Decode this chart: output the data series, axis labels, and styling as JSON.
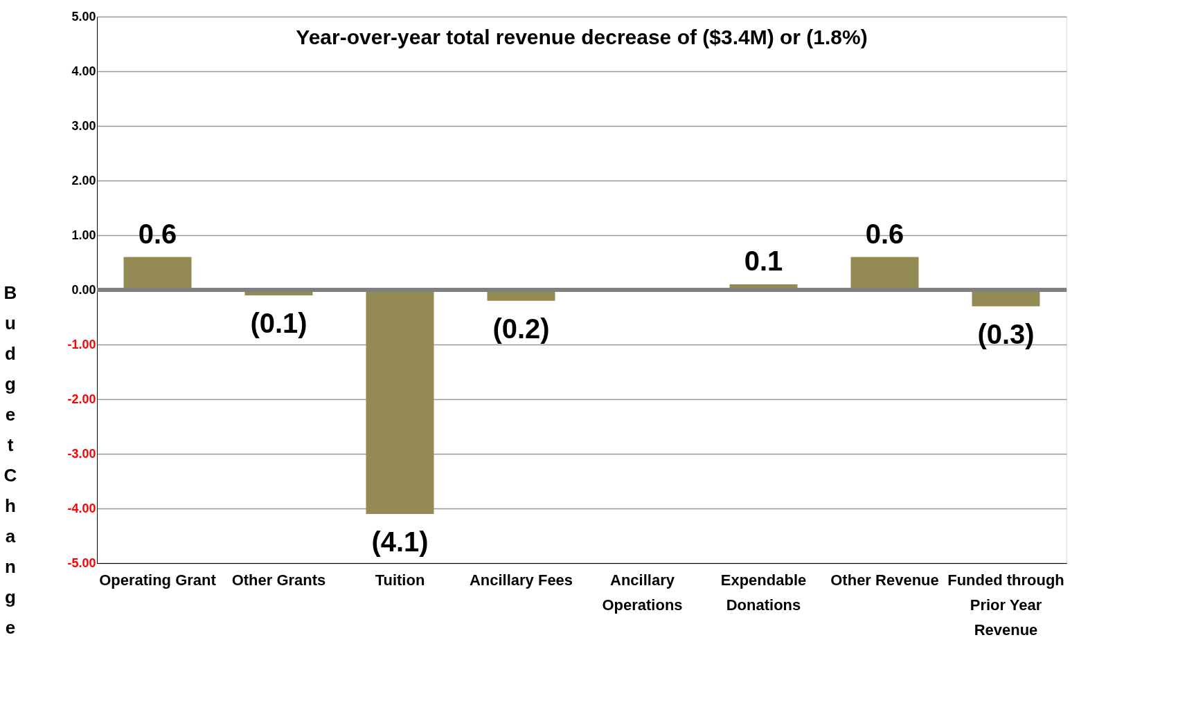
{
  "chart_data": {
    "type": "bar",
    "title": "Year-over-year total revenue decrease of ($3.4M) or (1.8%)",
    "ylabel": "Budget Change",
    "categories": [
      "Operating Grant",
      "Other Grants",
      "Tuition",
      "Ancillary Fees",
      "Ancillary Operations",
      "Expendable Donations",
      "Other Revenue",
      "Funded through Prior Year Revenue"
    ],
    "values": [
      0.6,
      -0.1,
      -4.1,
      -0.2,
      null,
      0.1,
      0.6,
      -0.3
    ],
    "value_labels": [
      "0.6",
      "(0.1)",
      "(4.1)",
      "(0.2)",
      null,
      "0.1",
      "0.6",
      "(0.3)"
    ],
    "color": "#948a54",
    "ylim": [
      -5,
      5
    ],
    "yticks": [
      {
        "value": 5,
        "label": "5.00"
      },
      {
        "value": 4,
        "label": "4.00"
      },
      {
        "value": 3,
        "label": "3.00"
      },
      {
        "value": 2,
        "label": "2.00"
      },
      {
        "value": 1,
        "label": "1.00"
      },
      {
        "value": 0,
        "label": "0.00"
      },
      {
        "value": -1,
        "label": "-1.00"
      },
      {
        "value": -2,
        "label": "-2.00"
      },
      {
        "value": -3,
        "label": "-3.00"
      },
      {
        "value": -4,
        "label": "-4.00"
      },
      {
        "value": -5,
        "label": "-5.00"
      }
    ],
    "ref_lines": [
      {
        "axis": "y",
        "value": 0,
        "color": "#808080"
      }
    ],
    "grid": "y"
  }
}
